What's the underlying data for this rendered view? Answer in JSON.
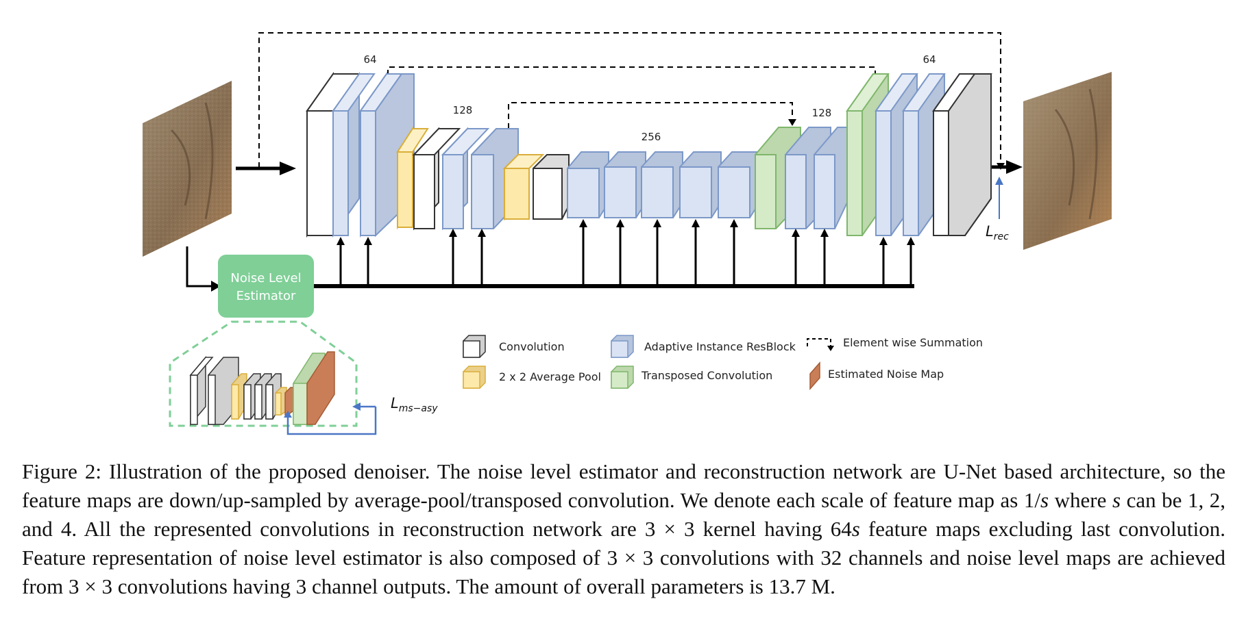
{
  "diagram": {
    "channels": {
      "top_left": "64",
      "mid_left": "128",
      "bottom": "256",
      "mid_right": "128",
      "top_right": "64"
    },
    "estimator": {
      "line1": "Noise Level",
      "line2": "Estimator"
    },
    "loss_rec": {
      "base": "L",
      "sub": "rec"
    },
    "loss_ms": {
      "base": "L",
      "sub": "ms−asy"
    },
    "legend": {
      "conv": "Convolution",
      "pool": "2 x 2 Average Pool",
      "resblock": "Adaptive Instance ResBlock",
      "transposed": "Transposed Convolution",
      "summation": "Element wise Summation",
      "noise_map": "Estimated Noise Map"
    },
    "colors": {
      "conv": "#ffffff",
      "resblock": "#dae3f3",
      "resblock_stroke": "#7b98c8",
      "pool": "#fde9a9",
      "pool_stroke": "#d9ae3a",
      "transposed": "#d5ebc8",
      "transposed_stroke": "#7fb66c",
      "estimator_box": "#7fcf97",
      "noise_map": "#c97e57",
      "loss_arrow": "#4a76c6"
    }
  },
  "caption": {
    "fig": "Figure 2:",
    "s1": "Illustration of the proposed denoiser.  The noise level estimator and reconstruction network are U-Net based architecture, so the feature maps are down/up-sampled by average-pool/transposed convolution.  We denote each scale of feature map as 1/",
    "var_s1": "s",
    "s2": " where ",
    "var_s2": "s",
    "s3": " can be 1, 2, and 4.  All the represented convolutions in reconstruction network are 3 × 3 kernel having 64",
    "var_s3": "s",
    "s4": " feature maps excluding last convolution. Feature representation of noise level estimator is also composed of 3 × 3 convolutions with 32 channels and noise level maps are achieved from 3 × 3 convolutions having 3 channel outputs.  The amount of overall parameters is 13.7 M."
  }
}
